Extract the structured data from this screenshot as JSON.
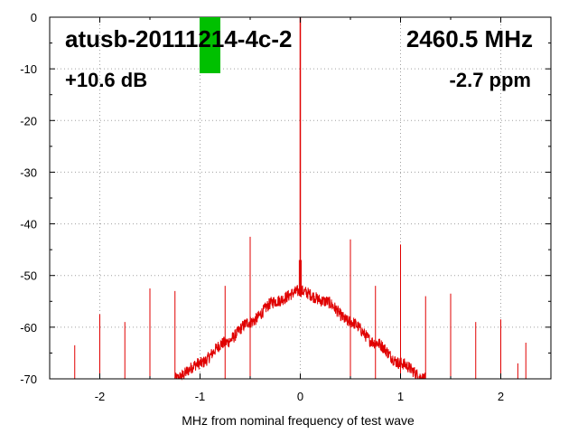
{
  "chart_data": {
    "type": "line",
    "title": "",
    "xlabel": "MHz from nominal frequency of test wave",
    "ylabel": "",
    "xlim": [
      -2.5,
      2.5
    ],
    "ylim": [
      -70,
      0
    ],
    "x_ticks": [
      -2,
      -1,
      0,
      1,
      2
    ],
    "y_ticks": [
      0,
      -10,
      -20,
      -30,
      -40,
      -50,
      -60,
      -70
    ],
    "grid": true,
    "series_color": "#e00000",
    "marker_color": "#00c000",
    "annotations": {
      "device_id": "atusb-20111214-4c-2",
      "frequency": "2460.5 MHz",
      "level": "+10.6 dB",
      "offset": "-2.7 ppm"
    },
    "carrier_peak": {
      "x": 0.0,
      "y": 0
    },
    "noise_envelope": {
      "x": [
        -1.25,
        -1.0,
        -0.75,
        -0.5,
        -0.25,
        0.0,
        0.25,
        0.5,
        0.75,
        1.0,
        1.25
      ],
      "y": [
        -70,
        -67,
        -63,
        -59,
        -55,
        -53,
        -55,
        -59,
        -63,
        -67,
        -70
      ]
    },
    "spurs": [
      {
        "x": -2.25,
        "y": -63.5
      },
      {
        "x": -2.0,
        "y": -57.5
      },
      {
        "x": -1.75,
        "y": -59
      },
      {
        "x": -1.5,
        "y": -52.5
      },
      {
        "x": -1.25,
        "y": -53
      },
      {
        "x": -0.75,
        "y": -52
      },
      {
        "x": -0.5,
        "y": -42.5
      },
      {
        "x": 0.5,
        "y": -43
      },
      {
        "x": 0.75,
        "y": -52
      },
      {
        "x": 1.0,
        "y": -44
      },
      {
        "x": 1.0,
        "y": -56.5
      },
      {
        "x": 1.25,
        "y": -54
      },
      {
        "x": 1.5,
        "y": -53.5
      },
      {
        "x": 1.5,
        "y": -60
      },
      {
        "x": 1.75,
        "y": -59
      },
      {
        "x": 2.0,
        "y": -58.5
      },
      {
        "x": 2.17,
        "y": -67
      },
      {
        "x": 2.25,
        "y": -63
      }
    ]
  }
}
